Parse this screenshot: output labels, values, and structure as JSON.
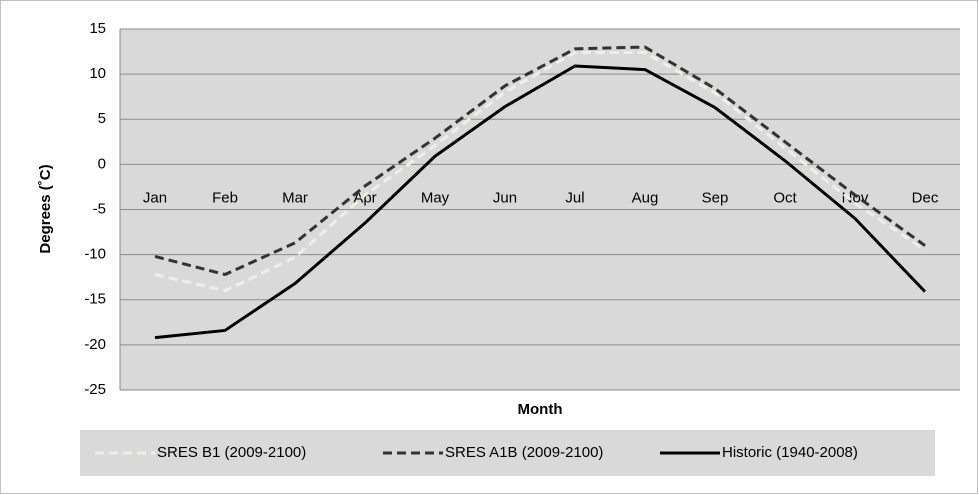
{
  "chart_data": {
    "type": "line",
    "x_label": "Month",
    "y_label": "Degrees (˚C)",
    "categories": [
      "Jan",
      "Feb",
      "Mar",
      "Apr",
      "May",
      "Jun",
      "Jul",
      "Aug",
      "Sep",
      "Oct",
      "Nov",
      "Dec"
    ],
    "series": [
      {
        "name": "SRES B1 (2009-2100)",
        "color": "#f0efe4",
        "dash": "dashed",
        "values": [
          -12.2,
          -14.0,
          -10.3,
          -3.4,
          2.1,
          8.0,
          12.4,
          12.4,
          7.9,
          1.8,
          -4.3,
          -9.5
        ]
      },
      {
        "name": "SRES A1B (2009-2100)",
        "color": "#333333",
        "dash": "dashed",
        "values": [
          -10.2,
          -12.2,
          -8.7,
          -2.4,
          2.9,
          8.7,
          12.8,
          13.0,
          8.4,
          2.5,
          -3.4,
          -9.0
        ]
      },
      {
        "name": "Historic (1940-2008)",
        "color": "#000000",
        "dash": "solid",
        "values": [
          -19.2,
          -18.4,
          -13.2,
          -6.5,
          0.9,
          6.4,
          10.9,
          10.5,
          6.3,
          0.4,
          -6.0,
          -14.1
        ]
      }
    ],
    "ylim": [
      -25,
      15
    ],
    "yticks": [
      -25,
      -20,
      -15,
      -10,
      -5,
      0,
      5,
      10,
      15
    ],
    "grid": true,
    "legend": "bottom"
  }
}
